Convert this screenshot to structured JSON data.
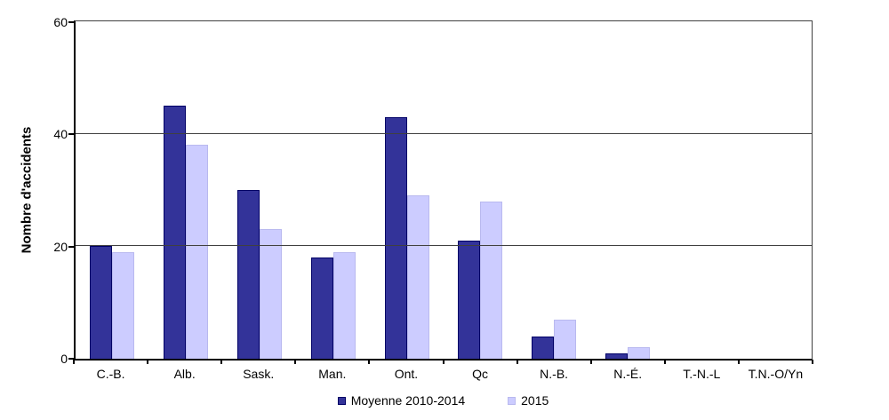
{
  "chart_data": {
    "type": "bar",
    "title": "",
    "xlabel": "",
    "ylabel": "Nombre d'accidents",
    "ylim": [
      0,
      60
    ],
    "yticks": [
      0,
      20,
      40,
      60
    ],
    "grid": "horizontal",
    "legend_position": "bottom",
    "categories": [
      "C.-B.",
      "Alb.",
      "Sask.",
      "Man.",
      "Ont.",
      "Qc",
      "N.-B.",
      "N.-É.",
      "T.-N.-L",
      "T.N.-O/Yn"
    ],
    "series": [
      {
        "name": "Moyenne 2010-2014",
        "color": "#333399",
        "border_color": "#000066",
        "values": [
          20,
          45,
          30,
          18,
          43,
          21,
          4,
          1,
          0,
          0
        ]
      },
      {
        "name": "2015",
        "color": "#CCCCFF",
        "border_color": "#b9b9ef",
        "values": [
          19,
          38,
          23,
          19,
          29,
          28,
          7,
          2,
          0,
          0
        ]
      }
    ],
    "colors": {
      "axis": "#000000",
      "gridline": "#404040",
      "background": "#ffffff"
    }
  }
}
